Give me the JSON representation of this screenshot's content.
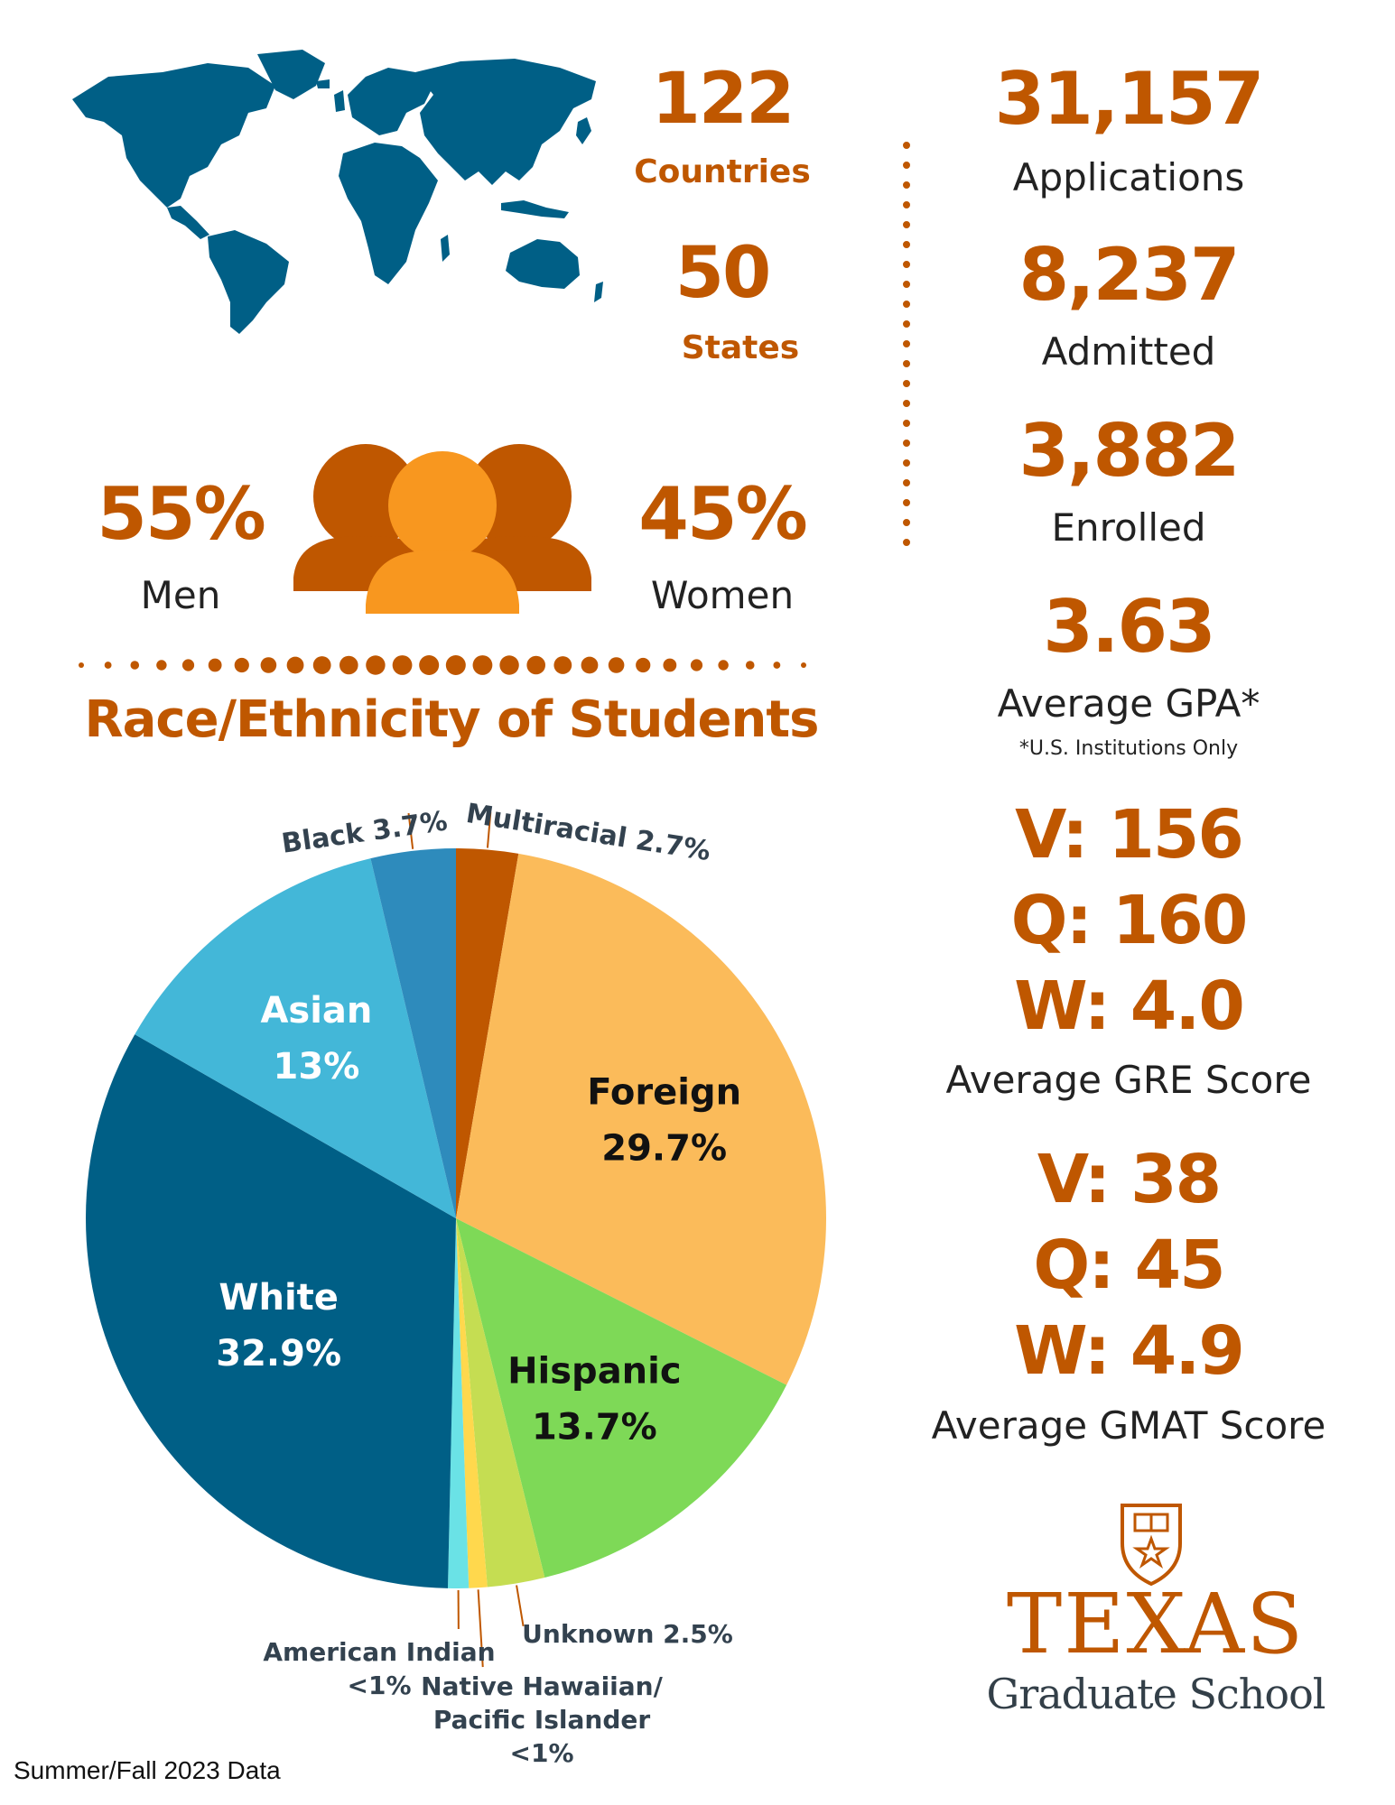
{
  "colors": {
    "burnt_orange": "#bf5700",
    "map_blue": "#005f86",
    "light_orange": "#f8971f"
  },
  "geo": {
    "countries_value": "122",
    "countries_label": "Countries",
    "states_value": "50",
    "states_label": "States"
  },
  "gender": {
    "men_pct": "55%",
    "men_label": "Men",
    "women_pct": "45%",
    "women_label": "Women"
  },
  "admissions": [
    {
      "value": "31,157",
      "label": "Applications"
    },
    {
      "value": "8,237",
      "label": "Admitted"
    },
    {
      "value": "3,882",
      "label": "Enrolled"
    }
  ],
  "gpa": {
    "value": "3.63",
    "label": "Average GPA*",
    "note": "*U.S. Institutions Only"
  },
  "gre": {
    "v": "V: 156",
    "q": "Q: 160",
    "w": "W: 4.0",
    "label": "Average GRE Score"
  },
  "gmat": {
    "v": "V: 38",
    "q": "Q: 45",
    "w": "W: 4.9",
    "label": "Average GMAT Score"
  },
  "logo": {
    "name": "TEXAS",
    "subtitle": "Graduate School"
  },
  "footer": "Summer/Fall 2023 Data",
  "chart_data": {
    "type": "pie",
    "title": "Race/Ethnicity of Students",
    "start_angle_deg": 0,
    "direction": "clockwise",
    "slices": [
      {
        "name": "Multiracial",
        "value": 2.7,
        "label": "Multiracial 2.7%",
        "color": "#bf5700"
      },
      {
        "name": "Foreign",
        "value": 29.7,
        "label_1": "Foreign",
        "label_2": "29.7%",
        "color": "#fbbb5a"
      },
      {
        "name": "Hispanic",
        "value": 13.7,
        "label_1": "Hispanic",
        "label_2": "13.7%",
        "color": "#7ed957"
      },
      {
        "name": "Unknown",
        "value": 2.5,
        "label": "Unknown 2.5%",
        "color": "#c5dd52"
      },
      {
        "name": "Native Hawaiian/Pacific Islander",
        "value": 0.8,
        "label_1": "Native Hawaiian/",
        "label_2": "Pacific Islander",
        "label_3": "<1%",
        "color": "#ffd84d"
      },
      {
        "name": "American Indian",
        "value": 0.9,
        "label_1": "American Indian",
        "label_2": "<1%",
        "color": "#6ae2e6"
      },
      {
        "name": "White",
        "value": 32.9,
        "label_1": "White",
        "label_2": "32.9%",
        "color": "#005f86"
      },
      {
        "name": "Asian",
        "value": 13.0,
        "label_1": "Asian",
        "label_2": "13%",
        "color": "#43b7d8"
      },
      {
        "name": "Black",
        "value": 3.7,
        "label": "Black 3.7%",
        "color": "#2e8bbc"
      }
    ]
  }
}
